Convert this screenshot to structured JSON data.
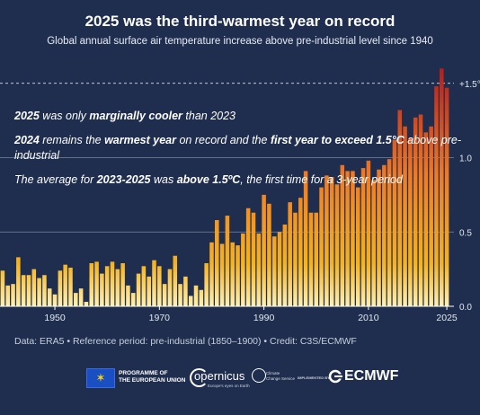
{
  "header": {
    "title": "2025 was the third-warmest year on record",
    "subtitle": "Global annual surface air temperature increase above pre-industrial level since 1940"
  },
  "annotations": [
    {
      "segments": [
        {
          "text": "2025",
          "bold": true
        },
        {
          "text": " was only ",
          "bold": false
        },
        {
          "text": "marginally cooler",
          "bold": true
        },
        {
          "text": " than 2023",
          "bold": false
        }
      ]
    },
    {
      "segments": [
        {
          "text": "2024",
          "bold": true
        },
        {
          "text": " remains the ",
          "bold": false
        },
        {
          "text": "warmest year",
          "bold": true
        },
        {
          "text": " on record and the ",
          "bold": false
        },
        {
          "text": "first year to exceed 1.5°C",
          "bold": true
        },
        {
          "text": " above pre-industrial",
          "bold": false
        }
      ]
    },
    {
      "segments": [
        {
          "text": "The average for ",
          "bold": false
        },
        {
          "text": "2023-2025",
          "bold": true
        },
        {
          "text": " was ",
          "bold": false
        },
        {
          "text": "above 1.5ºC",
          "bold": true
        },
        {
          "text": ", the first time for a 3-year period",
          "bold": false
        }
      ]
    }
  ],
  "footer": {
    "credit": "Data: ERA5 • Reference period: pre-industrial (1850–1900) • Credit: C3S/ECMWF",
    "logos": {
      "eu_line1": "PROGRAMME OF",
      "eu_line2": "THE EUROPEAN UNION",
      "copernicus": "opernicus",
      "copernicus_tagline": "Europe's eyes on Earth",
      "c3s_line1": "Climate",
      "c3s_line2": "Change Service",
      "implemented_by": "IMPLEMENTED BY",
      "ecmwf": "ECMWF"
    }
  },
  "colors": {
    "background": "#1f2e4e",
    "bar_low": "#fff1b0",
    "bar_mid": "#f6b21c",
    "bar_high": "#f07a24",
    "bar_top": "#b51d1d",
    "grid": "#7b86a0"
  },
  "chart_data": {
    "type": "bar",
    "title": "2025 was the third-warmest year on record",
    "subtitle": "Global annual surface air temperature increase above pre-industrial level since 1940",
    "xlabel": "",
    "ylabel": "",
    "x_tick_labels": [
      "1950",
      "1970",
      "1990",
      "2010",
      "2025"
    ],
    "y_tick_labels": [
      "0.0",
      "0.5",
      "1.0",
      "+1.5°C"
    ],
    "ylim": [
      0,
      1.55
    ],
    "grid": true,
    "reference_line": {
      "value": 1.5,
      "style": "dashed"
    },
    "categories": [
      1940,
      1941,
      1942,
      1943,
      1944,
      1945,
      1946,
      1947,
      1948,
      1949,
      1950,
      1951,
      1952,
      1953,
      1954,
      1955,
      1956,
      1957,
      1958,
      1959,
      1960,
      1961,
      1962,
      1963,
      1964,
      1965,
      1966,
      1967,
      1968,
      1969,
      1970,
      1971,
      1972,
      1973,
      1974,
      1975,
      1976,
      1977,
      1978,
      1979,
      1980,
      1981,
      1982,
      1983,
      1984,
      1985,
      1986,
      1987,
      1988,
      1989,
      1990,
      1991,
      1992,
      1993,
      1994,
      1995,
      1996,
      1997,
      1998,
      1999,
      2000,
      2001,
      2002,
      2003,
      2004,
      2005,
      2006,
      2007,
      2008,
      2009,
      2010,
      2011,
      2012,
      2013,
      2014,
      2015,
      2016,
      2017,
      2018,
      2019,
      2020,
      2021,
      2022,
      2023,
      2024,
      2025
    ],
    "values": [
      0.24,
      0.14,
      0.15,
      0.33,
      0.21,
      0.21,
      0.25,
      0.19,
      0.21,
      0.12,
      0.08,
      0.24,
      0.28,
      0.26,
      0.09,
      0.12,
      0.03,
      0.29,
      0.3,
      0.22,
      0.27,
      0.3,
      0.25,
      0.29,
      0.14,
      0.09,
      0.22,
      0.27,
      0.2,
      0.31,
      0.27,
      0.15,
      0.25,
      0.34,
      0.15,
      0.2,
      0.07,
      0.14,
      0.11,
      0.29,
      0.43,
      0.58,
      0.42,
      0.61,
      0.43,
      0.41,
      0.49,
      0.66,
      0.63,
      0.49,
      0.75,
      0.69,
      0.47,
      0.5,
      0.55,
      0.7,
      0.63,
      0.73,
      0.91,
      0.63,
      0.63,
      0.8,
      0.88,
      0.87,
      0.82,
      0.95,
      0.91,
      0.91,
      0.8,
      0.93,
      0.98,
      0.85,
      0.92,
      0.95,
      0.99,
      1.12,
      1.32,
      1.21,
      1.13,
      1.27,
      1.29,
      1.17,
      1.21,
      1.48,
      1.6,
      1.47
    ]
  }
}
